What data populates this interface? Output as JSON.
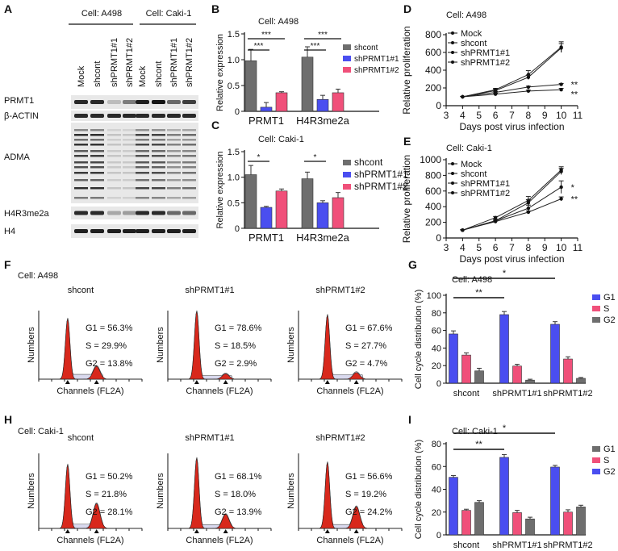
{
  "panels": {
    "A": "A",
    "B": "B",
    "C": "C",
    "D": "D",
    "E": "E",
    "F": "F",
    "G": "G",
    "H": "H",
    "I": "I"
  },
  "western_blot": {
    "groups": [
      "Cell: A498",
      "Cell: Caki-1"
    ],
    "lanes": [
      "Mock",
      "shcont",
      "shPRMT1#1",
      "shPRMT1#2"
    ],
    "rows": [
      {
        "label": "PRMT1",
        "intensity": [
          [
            0.9,
            0.9,
            0.2,
            0.5
          ],
          [
            0.95,
            1.0,
            0.6,
            0.8
          ]
        ]
      },
      {
        "label": "β-ACTIN",
        "intensity": [
          [
            0.9,
            0.9,
            0.9,
            0.9
          ],
          [
            0.9,
            0.9,
            0.9,
            0.9
          ]
        ]
      },
      {
        "label": "ADMA",
        "intensity": [
          [
            0.9,
            0.9,
            0.15,
            0.15
          ],
          [
            0.8,
            0.8,
            0.5,
            0.6
          ]
        ]
      },
      {
        "label": "H4R3me2a",
        "intensity": [
          [
            0.9,
            0.9,
            0.3,
            0.35
          ],
          [
            0.9,
            0.9,
            0.6,
            0.6
          ]
        ]
      },
      {
        "label": "H4",
        "intensity": [
          [
            0.95,
            0.95,
            0.95,
            0.95
          ],
          [
            0.95,
            0.95,
            0.95,
            0.95
          ]
        ]
      }
    ]
  },
  "chart_data": [
    {
      "id": "B",
      "type": "bar",
      "title": "Cell: A498",
      "ylabel": "Relative expression",
      "ylim": [
        0,
        1.5
      ],
      "yticks": [
        "0",
        "0.5",
        "1.0",
        "1.5"
      ],
      "ytick_values": [
        0,
        0.5,
        1.0,
        1.5
      ],
      "categories": [
        "PRMT1",
        "H4R3me2a"
      ],
      "series": [
        {
          "name": "shcont",
          "color": "#6e6e6e",
          "values": [
            0.98,
            1.05
          ],
          "errors": [
            0.22,
            0.2
          ]
        },
        {
          "name": "shPRMT1#1",
          "color": "#4a4ef0",
          "values": [
            0.08,
            0.23
          ],
          "errors": [
            0.09,
            0.08
          ]
        },
        {
          "name": "shPRMT1#2",
          "color": "#f0507a",
          "values": [
            0.36,
            0.36
          ],
          "errors": [
            0.02,
            0.07
          ]
        }
      ],
      "significance": [
        {
          "group": 0,
          "from": 0,
          "to": 1,
          "label": "***"
        },
        {
          "group": 0,
          "from": 0,
          "to": 2,
          "label": "***"
        },
        {
          "group": 1,
          "from": 0,
          "to": 1,
          "label": "***"
        },
        {
          "group": 1,
          "from": 0,
          "to": 2,
          "label": "***"
        }
      ],
      "legend": "right"
    },
    {
      "id": "C",
      "type": "bar",
      "title": "Cell: Caki-1",
      "ylabel": "Relative expression",
      "ylim": [
        0,
        1.5
      ],
      "yticks": [
        "0",
        "0.5",
        "1.0",
        "1.5"
      ],
      "ytick_values": [
        0,
        0.5,
        1.0,
        1.5
      ],
      "categories": [
        "PRMT1",
        "H4R3me2a"
      ],
      "series": [
        {
          "name": "shcont",
          "color": "#6e6e6e",
          "values": [
            1.05,
            0.97
          ],
          "errors": [
            0.18,
            0.13
          ]
        },
        {
          "name": "shPRMT1#1",
          "color": "#4a4ef0",
          "values": [
            0.41,
            0.5
          ],
          "errors": [
            0.02,
            0.04
          ]
        },
        {
          "name": "shPRMT1#2",
          "color": "#f0507a",
          "values": [
            0.73,
            0.6
          ],
          "errors": [
            0.04,
            0.1
          ]
        }
      ],
      "significance": [
        {
          "group": 0,
          "from": 0,
          "to": 1,
          "label": "*"
        },
        {
          "group": 1,
          "from": 0,
          "to": 1,
          "label": "*"
        }
      ],
      "legend": "right"
    },
    {
      "id": "D",
      "type": "line",
      "title": "Cell: A498",
      "xlabel": "Days post virus infection",
      "ylabel": "Relative proliferation",
      "xlim": [
        3,
        11
      ],
      "ylim": [
        0,
        800
      ],
      "xticks": [
        "3",
        "4",
        "5",
        "6",
        "7",
        "8",
        "9",
        "10",
        "11"
      ],
      "yticks": [
        "0",
        "200",
        "400",
        "600",
        "800"
      ],
      "ytick_values": [
        0,
        200,
        400,
        600,
        800
      ],
      "x": [
        4,
        6,
        8,
        10
      ],
      "series": [
        {
          "name": "Mock",
          "marker": "circle",
          "values": [
            100,
            180,
            350,
            660
          ],
          "errors": [
            5,
            15,
            45,
            60
          ]
        },
        {
          "name": "shcont",
          "marker": "square",
          "values": [
            100,
            170,
            320,
            650
          ],
          "errors": [
            5,
            15,
            25,
            50
          ]
        },
        {
          "name": "shPRMT1#1",
          "marker": "triangle-up",
          "values": [
            100,
            150,
            210,
            240
          ],
          "errors": [
            5,
            10,
            10,
            10
          ]
        },
        {
          "name": "shPRMT1#2",
          "marker": "triangle-down",
          "values": [
            100,
            130,
            165,
            180
          ],
          "errors": [
            5,
            10,
            10,
            15
          ]
        }
      ],
      "annotations": [
        {
          "series": 2,
          "label": "**"
        },
        {
          "series": 3,
          "label": "**"
        }
      ],
      "legend": "top-left"
    },
    {
      "id": "E",
      "type": "line",
      "title": "Cell: Caki-1",
      "xlabel": "Days post virus infection",
      "ylabel": "Relative proliferation",
      "xlim": [
        3,
        11
      ],
      "ylim": [
        0,
        1000
      ],
      "xticks": [
        "3",
        "4",
        "5",
        "6",
        "7",
        "8",
        "9",
        "10",
        "11"
      ],
      "yticks": [
        "0",
        "200",
        "400",
        "600",
        "800",
        "1000"
      ],
      "ytick_values": [
        0,
        200,
        400,
        600,
        800,
        1000
      ],
      "x": [
        4,
        6,
        8,
        10
      ],
      "series": [
        {
          "name": "Mock",
          "marker": "circle",
          "values": [
            100,
            260,
            480,
            870
          ],
          "errors": [
            5,
            15,
            50,
            40
          ]
        },
        {
          "name": "shcont",
          "marker": "square",
          "values": [
            100,
            220,
            450,
            850
          ],
          "errors": [
            5,
            20,
            40,
            40
          ]
        },
        {
          "name": "shPRMT1#1",
          "marker": "triangle-up",
          "values": [
            100,
            220,
            380,
            650
          ],
          "errors": [
            5,
            15,
            40,
            80
          ]
        },
        {
          "name": "shPRMT1#2",
          "marker": "triangle-down",
          "values": [
            100,
            210,
            330,
            500
          ],
          "errors": [
            5,
            10,
            15,
            25
          ]
        }
      ],
      "annotations": [
        {
          "series": 2,
          "label": "*"
        },
        {
          "series": 3,
          "label": "**"
        }
      ],
      "legend": "top-left"
    },
    {
      "id": "G",
      "type": "bar",
      "title": "Cell: A498",
      "ylabel": "Cell cycle distribution (%)",
      "ylim": [
        0,
        100
      ],
      "yticks": [
        "0",
        "20",
        "40",
        "60",
        "80",
        "100"
      ],
      "ytick_values": [
        0,
        20,
        40,
        60,
        80,
        100
      ],
      "categories": [
        "shcont",
        "shPRMT1#1",
        "shPRMT1#2"
      ],
      "series": [
        {
          "name": "G1",
          "color": "#4a4ef0",
          "values": [
            56,
            78,
            67
          ],
          "errors": [
            3.5,
            3.5,
            3
          ]
        },
        {
          "name": "S",
          "color": "#f0507a",
          "values": [
            32,
            19.5,
            27.5
          ],
          "errors": [
            2.5,
            2,
            2.5
          ]
        },
        {
          "name": "G2",
          "color": "#6e6e6e",
          "values": [
            14,
            3.5,
            5.5
          ],
          "errors": [
            3,
            1,
            1
          ]
        }
      ],
      "legend_order": [
        0,
        1,
        2
      ],
      "significance_between_groups": [
        {
          "from": 0,
          "to": 1,
          "label": "**"
        },
        {
          "from": 0,
          "to": 2,
          "label": "*"
        }
      ],
      "legend": "right"
    },
    {
      "id": "I",
      "type": "bar",
      "title": "Cell: Caki-1",
      "ylabel": "Cell cycle distribution (%)",
      "ylim": [
        0,
        80
      ],
      "yticks": [
        "0",
        "20",
        "40",
        "60",
        "80"
      ],
      "ytick_values": [
        0,
        20,
        40,
        60,
        80
      ],
      "categories": [
        "shcont",
        "shPRMT1#1",
        "shPRMT1#2"
      ],
      "series": [
        {
          "name": "G2",
          "color": "#4a4ef0",
          "values": [
            50.5,
            68,
            59.5
          ],
          "errors": [
            1.5,
            2.5,
            1.5
          ]
        },
        {
          "name": "S",
          "color": "#f0507a",
          "values": [
            21.5,
            19.5,
            20
          ],
          "errors": [
            1,
            2,
            2
          ]
        },
        {
          "name": "G1",
          "color": "#6e6e6e",
          "values": [
            28.5,
            14,
            24.5
          ],
          "errors": [
            1.5,
            1.5,
            1.5
          ]
        }
      ],
      "legend_order": [
        2,
        1,
        0
      ],
      "significance_between_groups": [
        {
          "from": 0,
          "to": 1,
          "label": "**"
        },
        {
          "from": 0,
          "to": 2,
          "label": "*"
        }
      ],
      "legend": "right"
    }
  ],
  "flow": [
    {
      "id": "F",
      "title": "Cell: A498",
      "xlabel": "Channels (FL2A)",
      "ylabel": "Numbers",
      "samples": [
        {
          "name": "shcont",
          "g1": "G1 = 56.3%",
          "s": "S = 29.9%",
          "g2": "G2 = 13.8%",
          "G1": 56.3,
          "S": 29.9,
          "G2": 13.8
        },
        {
          "name": "shPRMT1#1",
          "g1": "G1 = 78.6%",
          "s": "S = 18.5%",
          "g2": "G2 = 2.9%",
          "G1": 78.6,
          "S": 18.5,
          "G2": 2.9
        },
        {
          "name": "shPRMT1#2",
          "g1": "G1 = 67.6%",
          "s": "S = 27.7%",
          "g2": "G2 = 4.7%",
          "G1": 67.6,
          "S": 27.7,
          "G2": 4.7
        }
      ]
    },
    {
      "id": "H",
      "title": "Cell: Caki-1",
      "xlabel": "Channels (FL2A)",
      "ylabel": "Numbers",
      "samples": [
        {
          "name": "shcont",
          "g1": "G1 = 50.2%",
          "s": "S = 21.8%",
          "g2": "G2 = 28.1%",
          "G1": 50.2,
          "S": 21.8,
          "G2": 28.1
        },
        {
          "name": "shPRMT1#1",
          "g1": "G1 = 68.1%",
          "s": "S = 18.0%",
          "g2": "G2 = 13.9%",
          "G1": 68.1,
          "S": 18.0,
          "G2": 13.9
        },
        {
          "name": "shPRMT1#2",
          "g1": "G1 = 56.6%",
          "s": "S = 19.2%",
          "g2": "G2 = 24.2%",
          "G1": 56.6,
          "S": 19.2,
          "G2": 24.2
        }
      ]
    }
  ],
  "colors": {
    "blue": "#4a4ef0",
    "pink": "#f0507a",
    "gray": "#6e6e6e",
    "flow_red": "#d8281c"
  }
}
